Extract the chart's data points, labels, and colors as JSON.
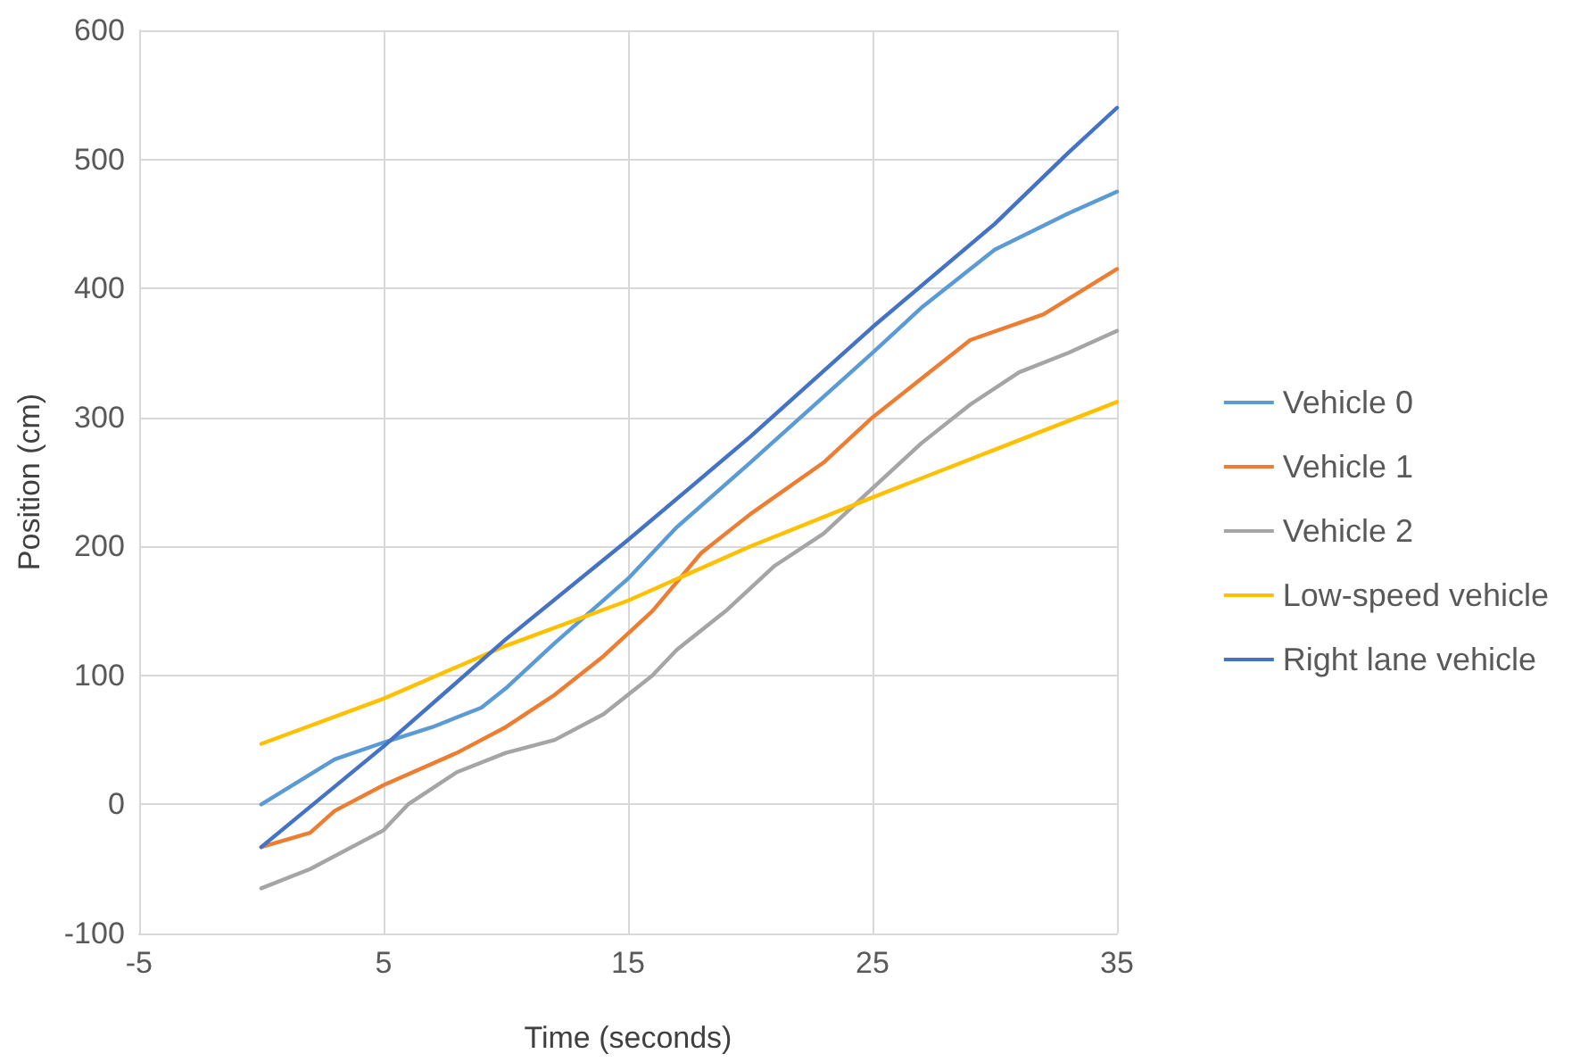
{
  "chart_data": {
    "type": "line",
    "xlabel": "Time (seconds)",
    "ylabel": "Position (cm)",
    "xlim": [
      -5,
      35
    ],
    "xticks": [
      -5,
      5,
      15,
      25,
      35
    ],
    "ylim": [
      -100,
      600
    ],
    "yticks": [
      -100,
      0,
      100,
      200,
      300,
      400,
      500,
      600
    ],
    "grid": true,
    "legend": "right",
    "marker": "none",
    "line_style": "solid",
    "series": [
      {
        "name": "Vehicle 0",
        "color": "#5b9bd5",
        "x": [
          0,
          3,
          5,
          7,
          9,
          10,
          12,
          15,
          17,
          20,
          25,
          27,
          30,
          33,
          35
        ],
        "values": [
          0,
          35,
          48,
          60,
          75,
          90,
          125,
          175,
          215,
          265,
          350,
          385,
          430,
          458,
          475
        ]
      },
      {
        "name": "Vehicle 1",
        "color": "#ed7d31",
        "x": [
          0,
          2,
          3,
          5,
          8,
          10,
          12,
          14,
          16,
          18,
          20,
          23,
          25,
          27,
          29,
          32,
          35
        ],
        "values": [
          -33,
          -22,
          -5,
          15,
          40,
          60,
          85,
          115,
          150,
          195,
          225,
          265,
          300,
          330,
          360,
          380,
          415
        ]
      },
      {
        "name": "Vehicle 2",
        "color": "#a5a5a5",
        "x": [
          0,
          2,
          5,
          6,
          8,
          10,
          12,
          14,
          15,
          16,
          17,
          19,
          21,
          23,
          25,
          27,
          29,
          31,
          33,
          35
        ],
        "values": [
          -65,
          -50,
          -20,
          0,
          25,
          40,
          50,
          70,
          85,
          100,
          120,
          150,
          185,
          210,
          245,
          280,
          310,
          335,
          350,
          367
        ]
      },
      {
        "name": "Low-speed vehicle",
        "color": "#ffc000",
        "x": [
          0,
          5,
          10,
          15,
          20,
          25,
          30,
          35
        ],
        "values": [
          47,
          82,
          123,
          158,
          200,
          238,
          275,
          312
        ]
      },
      {
        "name": "Right lane vehicle",
        "color": "#4472c4",
        "x": [
          0,
          5,
          10,
          15,
          20,
          25,
          30,
          33,
          35
        ],
        "values": [
          -33,
          45,
          128,
          205,
          285,
          370,
          450,
          505,
          540
        ]
      }
    ]
  }
}
